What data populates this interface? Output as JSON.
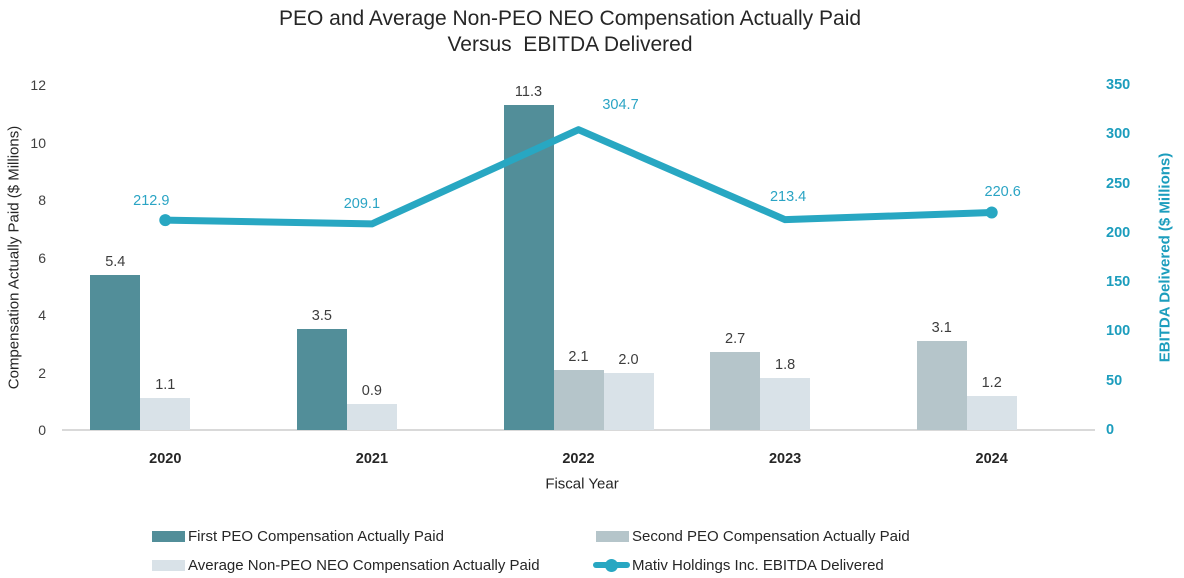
{
  "title": {
    "line1": "PEO and Average Non-PEO NEO Compensation Actually Paid",
    "line2": "Versus  EBITDA Delivered"
  },
  "chart_data": {
    "type": "bar",
    "subtype": "grouped bars with secondary-axis line",
    "categories": [
      "2020",
      "2021",
      "2022",
      "2023",
      "2024"
    ],
    "series": [
      {
        "name": "First PEO Compensation Actually Paid",
        "type": "bar",
        "color": "#528e99",
        "axis": "left",
        "values": [
          5.4,
          3.5,
          11.3,
          null,
          null
        ]
      },
      {
        "name": "Second PEO Compensation Actually Paid",
        "type": "bar",
        "color": "#b5c5ca",
        "axis": "left",
        "values": [
          null,
          null,
          2.1,
          2.7,
          3.1
        ]
      },
      {
        "name": "Average Non-PEO NEO Compensation Actually Paid",
        "type": "bar",
        "color": "#d9e2e8",
        "axis": "left",
        "values": [
          1.1,
          0.9,
          2.0,
          1.8,
          1.2
        ]
      },
      {
        "name": "Mativ Holdings Inc. EBITDA Delivered",
        "type": "line",
        "color": "#28a7c2",
        "axis": "right",
        "values": [
          212.9,
          209.1,
          304.7,
          213.4,
          220.6
        ]
      }
    ],
    "left_axis": {
      "label": "Compensation Actually Paid ($ Millions)",
      "min": 0,
      "max": 12,
      "ticks": [
        0,
        2,
        4,
        6,
        8,
        10,
        12
      ]
    },
    "right_axis": {
      "label": "EBITDA Delivered ($ Millions)",
      "min": 0,
      "max": 350,
      "ticks": [
        0,
        50,
        100,
        150,
        200,
        250,
        300,
        350
      ]
    },
    "xlabel": "Fiscal Year",
    "grid": false,
    "legend_position": "bottom"
  },
  "legend": {
    "items": [
      {
        "label": "First PEO Compensation Actually Paid",
        "marker": "bar",
        "color": "#528e99"
      },
      {
        "label": "Second PEO Compensation Actually Paid",
        "marker": "bar",
        "color": "#b5c5ca"
      },
      {
        "label": "Average Non-PEO NEO Compensation Actually Paid",
        "marker": "bar",
        "color": "#d9e2e8"
      },
      {
        "label": "Mativ Holdings Inc. EBITDA Delivered",
        "marker": "line",
        "color": "#28a7c2"
      }
    ]
  }
}
